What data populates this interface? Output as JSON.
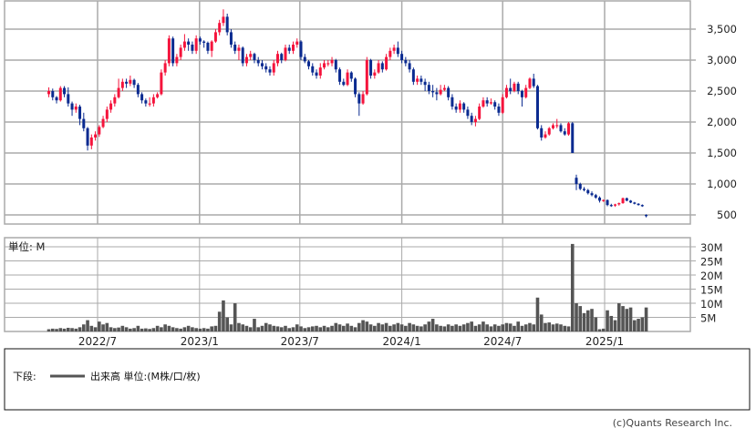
{
  "chart_data": [
    {
      "type": "candlestick",
      "panel": "price",
      "ylim": [
        400,
        3900
      ],
      "y_ticks": [
        500,
        1000,
        1500,
        2000,
        2500,
        3000,
        3500
      ],
      "y_tick_labels": [
        "500",
        "1,000",
        "1,500",
        "2,000",
        "2,500",
        "3,000",
        "3,500"
      ],
      "grid": true,
      "colors": {
        "up": "#f5143c",
        "down": "#0a2a90",
        "grid": "#aaaaaa"
      },
      "candles_fields": [
        "date",
        "open",
        "high",
        "low",
        "close"
      ],
      "candles": [
        [
          "2022-04-04",
          2450,
          2560,
          2400,
          2500
        ],
        [
          "2022-04-11",
          2500,
          2540,
          2350,
          2400
        ],
        [
          "2022-04-18",
          2400,
          2420,
          2300,
          2350
        ],
        [
          "2022-04-25",
          2350,
          2580,
          2330,
          2550
        ],
        [
          "2022-05-02",
          2550,
          2580,
          2400,
          2450
        ],
        [
          "2022-05-09",
          2450,
          2560,
          2250,
          2300
        ],
        [
          "2022-05-16",
          2300,
          2330,
          2100,
          2200
        ],
        [
          "2022-05-23",
          2200,
          2300,
          2150,
          2250
        ],
        [
          "2022-05-30",
          2250,
          2280,
          1950,
          2050
        ],
        [
          "2022-06-06",
          2050,
          2150,
          1850,
          1900
        ],
        [
          "2022-06-13",
          1900,
          1920,
          1540,
          1620
        ],
        [
          "2022-06-20",
          1620,
          1800,
          1560,
          1750
        ],
        [
          "2022-06-27",
          1750,
          1850,
          1700,
          1800
        ],
        [
          "2022-07-04",
          1800,
          1950,
          1760,
          1920
        ],
        [
          "2022-07-11",
          1920,
          2100,
          1900,
          2050
        ],
        [
          "2022-07-18",
          2050,
          2250,
          2000,
          2200
        ],
        [
          "2022-07-25",
          2200,
          2350,
          2150,
          2300
        ],
        [
          "2022-08-01",
          2300,
          2450,
          2250,
          2400
        ],
        [
          "2022-08-08",
          2400,
          2700,
          2380,
          2550
        ],
        [
          "2022-08-15",
          2550,
          2700,
          2500,
          2650
        ],
        [
          "2022-08-22",
          2650,
          2700,
          2550,
          2620
        ],
        [
          "2022-08-29",
          2620,
          2750,
          2580,
          2680
        ],
        [
          "2022-09-05",
          2680,
          2700,
          2550,
          2600
        ],
        [
          "2022-09-12",
          2600,
          2630,
          2400,
          2450
        ],
        [
          "2022-09-19",
          2450,
          2480,
          2300,
          2350
        ],
        [
          "2022-09-26",
          2350,
          2380,
          2250,
          2300
        ],
        [
          "2022-10-03",
          2300,
          2400,
          2250,
          2300
        ],
        [
          "2022-10-10",
          2300,
          2450,
          2250,
          2400
        ],
        [
          "2022-10-17",
          2400,
          2480,
          2380,
          2450
        ],
        [
          "2022-10-24",
          2450,
          2850,
          2430,
          2800
        ],
        [
          "2022-10-31",
          2800,
          3000,
          2750,
          2950
        ],
        [
          "2022-11-07",
          2950,
          3400,
          2900,
          3350
        ],
        [
          "2022-11-14",
          3350,
          3380,
          2900,
          2950
        ],
        [
          "2022-11-21",
          2950,
          3100,
          2900,
          3050
        ],
        [
          "2022-11-28",
          3050,
          3250,
          3000,
          3200
        ],
        [
          "2022-12-05",
          3200,
          3420,
          3150,
          3300
        ],
        [
          "2022-12-12",
          3300,
          3350,
          3150,
          3250
        ],
        [
          "2022-12-19",
          3250,
          3300,
          3100,
          3150
        ],
        [
          "2022-12-26",
          3150,
          3400,
          3100,
          3350
        ],
        [
          "2023-01-02",
          3350,
          3380,
          3250,
          3300
        ],
        [
          "2023-01-09",
          3300,
          3320,
          3200,
          3280
        ],
        [
          "2023-01-16",
          3280,
          3300,
          3100,
          3150
        ],
        [
          "2023-01-23",
          3150,
          3320,
          3050,
          3300
        ],
        [
          "2023-01-30",
          3300,
          3500,
          3280,
          3450
        ],
        [
          "2023-02-06",
          3450,
          3650,
          3400,
          3600
        ],
        [
          "2023-02-13",
          3600,
          3820,
          3550,
          3700
        ],
        [
          "2023-02-20",
          3700,
          3750,
          3400,
          3450
        ],
        [
          "2023-02-27",
          3450,
          3500,
          3200,
          3250
        ],
        [
          "2023-03-06",
          3250,
          3300,
          3100,
          3150
        ],
        [
          "2023-03-13",
          3150,
          3250,
          3000,
          3200
        ],
        [
          "2023-03-20",
          3200,
          3220,
          2900,
          2950
        ],
        [
          "2023-03-27",
          2950,
          3100,
          2900,
          3050
        ],
        [
          "2023-04-03",
          3050,
          3150,
          3000,
          3100
        ],
        [
          "2023-04-10",
          3100,
          3120,
          2950,
          3000
        ],
        [
          "2023-04-17",
          3000,
          3050,
          2900,
          2950
        ],
        [
          "2023-04-24",
          2950,
          3000,
          2850,
          2900
        ],
        [
          "2023-05-01",
          2900,
          2950,
          2800,
          2850
        ],
        [
          "2023-05-08",
          2850,
          2900,
          2750,
          2800
        ],
        [
          "2023-05-15",
          2800,
          3000,
          2750,
          2950
        ],
        [
          "2023-05-22",
          2950,
          3150,
          2900,
          3100
        ],
        [
          "2023-05-29",
          3100,
          3120,
          2950,
          3000
        ],
        [
          "2023-06-05",
          3000,
          3250,
          2980,
          3200
        ],
        [
          "2023-06-12",
          3200,
          3250,
          3100,
          3150
        ],
        [
          "2023-06-19",
          3150,
          3300,
          3100,
          3250
        ],
        [
          "2023-06-26",
          3250,
          3350,
          3200,
          3300
        ],
        [
          "2023-07-03",
          3300,
          3320,
          3000,
          3050
        ],
        [
          "2023-07-10",
          3050,
          3100,
          2950,
          2980
        ],
        [
          "2023-07-17",
          2980,
          3000,
          2850,
          2900
        ],
        [
          "2023-07-24",
          2900,
          2950,
          2750,
          2800
        ],
        [
          "2023-07-31",
          2800,
          2850,
          2700,
          2750
        ],
        [
          "2023-08-07",
          2750,
          2950,
          2700,
          2880
        ],
        [
          "2023-08-14",
          2880,
          3000,
          2850,
          2950
        ],
        [
          "2023-08-21",
          2950,
          3000,
          2900,
          2950
        ],
        [
          "2023-08-28",
          2950,
          3050,
          2900,
          3000
        ],
        [
          "2023-09-04",
          3000,
          3020,
          2800,
          2850
        ],
        [
          "2023-09-11",
          2850,
          2880,
          2600,
          2650
        ],
        [
          "2023-09-18",
          2650,
          2700,
          2580,
          2600
        ],
        [
          "2023-09-25",
          2600,
          2850,
          2580,
          2800
        ],
        [
          "2023-10-02",
          2800,
          2820,
          2650,
          2700
        ],
        [
          "2023-10-09",
          2700,
          2720,
          2400,
          2450
        ],
        [
          "2023-10-16",
          2450,
          2480,
          2100,
          2300
        ],
        [
          "2023-10-23",
          2300,
          2500,
          2280,
          2450
        ],
        [
          "2023-10-30",
          2450,
          3050,
          2430,
          3000
        ],
        [
          "2023-11-06",
          3000,
          3020,
          2700,
          2750
        ],
        [
          "2023-11-13",
          2750,
          2850,
          2700,
          2800
        ],
        [
          "2023-11-20",
          2800,
          3000,
          2780,
          2950
        ],
        [
          "2023-11-27",
          2950,
          2980,
          2800,
          2850
        ],
        [
          "2023-12-04",
          2850,
          3100,
          2830,
          3050
        ],
        [
          "2023-12-11",
          3050,
          3200,
          3000,
          3150
        ],
        [
          "2023-12-18",
          3150,
          3250,
          3100,
          3200
        ],
        [
          "2023-12-25",
          3200,
          3300,
          3050,
          3100
        ],
        [
          "2024-01-01",
          3100,
          3150,
          2950,
          3000
        ],
        [
          "2024-01-08",
          3000,
          3050,
          2900,
          2950
        ],
        [
          "2024-01-15",
          2950,
          3000,
          2800,
          2850
        ],
        [
          "2024-01-22",
          2850,
          2880,
          2600,
          2650
        ],
        [
          "2024-01-29",
          2650,
          2750,
          2600,
          2700
        ],
        [
          "2024-02-05",
          2700,
          2750,
          2600,
          2650
        ],
        [
          "2024-02-12",
          2650,
          2700,
          2500,
          2600
        ],
        [
          "2024-02-19",
          2600,
          2650,
          2450,
          2500
        ],
        [
          "2024-02-26",
          2500,
          2600,
          2400,
          2480
        ],
        [
          "2024-03-04",
          2480,
          2550,
          2350,
          2450
        ],
        [
          "2024-03-11",
          2450,
          2600,
          2430,
          2520
        ],
        [
          "2024-03-18",
          2520,
          2600,
          2500,
          2550
        ],
        [
          "2024-03-25",
          2550,
          2580,
          2350,
          2400
        ],
        [
          "2024-04-01",
          2400,
          2450,
          2200,
          2250
        ],
        [
          "2024-04-08",
          2250,
          2300,
          2150,
          2200
        ],
        [
          "2024-04-15",
          2200,
          2350,
          2150,
          2300
        ],
        [
          "2024-04-22",
          2300,
          2320,
          2150,
          2200
        ],
        [
          "2024-04-29",
          2200,
          2250,
          2050,
          2100
        ],
        [
          "2024-05-06",
          2100,
          2150,
          1950,
          2000
        ],
        [
          "2024-05-13",
          2000,
          2100,
          1930,
          2050
        ],
        [
          "2024-05-20",
          2050,
          2300,
          2030,
          2250
        ],
        [
          "2024-05-27",
          2250,
          2400,
          2230,
          2350
        ],
        [
          "2024-06-03",
          2350,
          2400,
          2250,
          2300
        ],
        [
          "2024-06-10",
          2300,
          2380,
          2280,
          2320
        ],
        [
          "2024-06-17",
          2320,
          2350,
          2200,
          2250
        ],
        [
          "2024-06-24",
          2250,
          2300,
          2100,
          2150
        ],
        [
          "2024-07-01",
          2150,
          2450,
          2130,
          2400
        ],
        [
          "2024-07-08",
          2400,
          2600,
          2380,
          2550
        ],
        [
          "2024-07-15",
          2550,
          2700,
          2450,
          2500
        ],
        [
          "2024-07-22",
          2500,
          2650,
          2480,
          2620
        ],
        [
          "2024-07-29",
          2620,
          2650,
          2450,
          2500
        ],
        [
          "2024-08-05",
          2500,
          2520,
          2250,
          2400
        ],
        [
          "2024-08-12",
          2400,
          2600,
          2380,
          2550
        ],
        [
          "2024-08-19",
          2550,
          2720,
          2530,
          2700
        ],
        [
          "2024-08-26",
          2700,
          2780,
          2550,
          2580
        ],
        [
          "2024-09-02",
          2580,
          2600,
          1880,
          1900
        ],
        [
          "2024-09-09",
          1900,
          1950,
          1700,
          1750
        ],
        [
          "2024-09-16",
          1750,
          1850,
          1730,
          1800
        ],
        [
          "2024-09-23",
          1800,
          1920,
          1780,
          1900
        ],
        [
          "2024-09-30",
          1900,
          1980,
          1880,
          1950
        ],
        [
          "2024-10-07",
          1950,
          2050,
          1900,
          1950
        ],
        [
          "2024-10-14",
          1950,
          1980,
          1830,
          1850
        ],
        [
          "2024-10-21",
          1850,
          1900,
          1780,
          1800
        ],
        [
          "2024-10-28",
          1800,
          2000,
          1780,
          1980
        ],
        [
          "2024-11-04",
          1980,
          2000,
          1500,
          1500
        ],
        [
          "2024-11-11",
          1100,
          1150,
          900,
          1000
        ],
        [
          "2024-11-18",
          1000,
          1020,
          900,
          920
        ],
        [
          "2024-11-25",
          920,
          950,
          880,
          900
        ],
        [
          "2024-12-02",
          900,
          920,
          830,
          850
        ],
        [
          "2024-12-09",
          850,
          880,
          800,
          820
        ],
        [
          "2024-12-16",
          820,
          840,
          760,
          780
        ],
        [
          "2024-12-23",
          780,
          800,
          700,
          730
        ],
        [
          "2024-12-30",
          730,
          750,
          710,
          740
        ],
        [
          "2025-01-06",
          740,
          750,
          640,
          660
        ],
        [
          "2025-01-13",
          660,
          680,
          630,
          650
        ],
        [
          "2025-01-20",
          650,
          680,
          630,
          670
        ],
        [
          "2025-01-27",
          670,
          700,
          650,
          690
        ],
        [
          "2025-02-03",
          690,
          780,
          680,
          770
        ],
        [
          "2025-02-10",
          770,
          780,
          720,
          730
        ],
        [
          "2025-02-17",
          730,
          740,
          690,
          700
        ],
        [
          "2025-02-24",
          700,
          710,
          670,
          680
        ],
        [
          "2025-03-03",
          680,
          690,
          650,
          660
        ],
        [
          "2025-03-10",
          660,
          670,
          630,
          640
        ],
        [
          "2025-03-17",
          500,
          510,
          460,
          480
        ]
      ]
    },
    {
      "type": "bar",
      "panel": "volume",
      "unit_label": "単位: M",
      "ylim": [
        0,
        33
      ],
      "y_ticks": [
        5,
        10,
        15,
        20,
        25,
        30
      ],
      "y_tick_labels": [
        "5M",
        "10M",
        "15M",
        "20M",
        "25M",
        "30M"
      ],
      "grid": true,
      "color": "#555555",
      "values": [
        0.8,
        1,
        0.9,
        1.2,
        1,
        1.3,
        1.2,
        1,
        1.5,
        2.5,
        4,
        2,
        1.5,
        3.5,
        2.5,
        3,
        1.5,
        1.2,
        1.4,
        2,
        1.5,
        1,
        1.2,
        2,
        1,
        1.1,
        0.9,
        1.2,
        2,
        1.5,
        2.5,
        2,
        1.5,
        1.2,
        1,
        1.5,
        2,
        1.5,
        1.2,
        1,
        1.2,
        1,
        1.8,
        2,
        7,
        11,
        5,
        2.5,
        10,
        3,
        2.5,
        2,
        1.5,
        4.5,
        1.5,
        2,
        3,
        2.5,
        2,
        1.8,
        1.5,
        2,
        1.2,
        1.5,
        2.5,
        1.8,
        1.2,
        1.5,
        1.8,
        2,
        1.5,
        2,
        1.5,
        2,
        3,
        2.5,
        2,
        2.8,
        2,
        1.5,
        3,
        4,
        3.5,
        2.5,
        2,
        3,
        2.5,
        3,
        2,
        2.5,
        3,
        2.5,
        2,
        3,
        2.5,
        2,
        1.8,
        2.5,
        3.5,
        4.5,
        2.5,
        2,
        1.8,
        2.5,
        2,
        2.5,
        2,
        2.5,
        3,
        3.5,
        2,
        2.5,
        3.5,
        2.5,
        1.8,
        2.5,
        2,
        2.5,
        3,
        2.8,
        2,
        3.5,
        2,
        2.5,
        3,
        2.5,
        12,
        6,
        3,
        3.2,
        2.5,
        2.8,
        2.5,
        2,
        1.8,
        31,
        10,
        9,
        6.5,
        7.5,
        8,
        5,
        0.8,
        1,
        7.5,
        5.5,
        4,
        10,
        9,
        8,
        8.5,
        4,
        4.5,
        5,
        8.5
      ]
    }
  ],
  "x_axis": {
    "tick_labels": [
      "2022/7",
      "2023/1",
      "2023/7",
      "2024/1",
      "2024/7",
      "2025/1"
    ]
  },
  "legend": {
    "prefix": "下段:",
    "series": "出来高 単位:(M株/口/枚)",
    "line_color": "#555555"
  },
  "copyright": "(c)Quants Research Inc."
}
